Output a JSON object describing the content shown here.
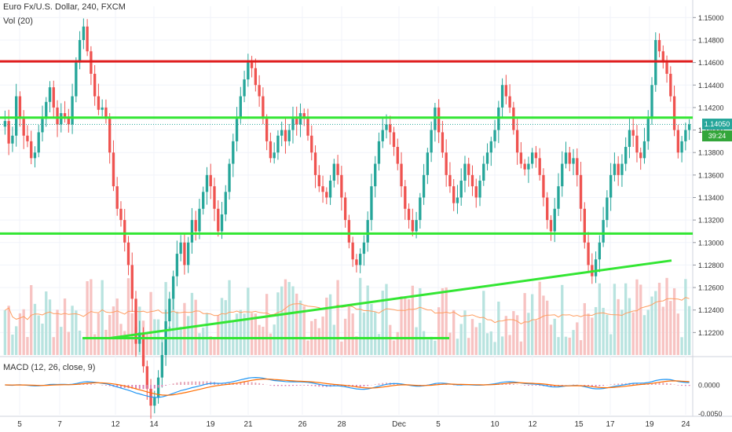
{
  "header": {
    "title": "Euro Fx/U.S. Dollar, 240, FXCM",
    "volume_label": "Vol (20)",
    "macd_label": "MACD (12, 26, close, 9)"
  },
  "price_axis": {
    "ticks": [
      "1.15000",
      "1.14800",
      "1.14600",
      "1.14400",
      "1.14200",
      "1.14000",
      "1.13800",
      "1.13600",
      "1.13400",
      "1.13200",
      "1.13000",
      "1.12800",
      "1.12600",
      "1.12400",
      "1.12200"
    ],
    "last_price": "1.14050",
    "countdown": "39:24"
  },
  "macd_axis": {
    "ticks": [
      "0.0000",
      "-0.0050"
    ]
  },
  "time_axis": {
    "labels": [
      "5",
      "7",
      "12",
      "14",
      "19",
      "21",
      "26",
      "28",
      "Dec",
      "5",
      "10",
      "12",
      "15",
      "17",
      "19",
      "24"
    ]
  },
  "colors": {
    "up": "#26a69a",
    "down": "#ef5350",
    "support_lines": "#33e633",
    "resistance": "#e01b1b",
    "macd_line": "#2196f3",
    "signal_line": "#ff6d00",
    "volume_ma": "#ff9d60",
    "price_tag": "#26a69a",
    "countdown_tag": "#33a63a"
  },
  "chart_data": {
    "type": "candlestick",
    "instrument": "Euro Fx/U.S. Dollar",
    "timeframe": "240",
    "source": "FXCM",
    "ylim": [
      1.12,
      1.151
    ],
    "grid": true,
    "closes": [
      1.1408,
      1.1388,
      1.1395,
      1.143,
      1.141,
      1.1395,
      1.139,
      1.1375,
      1.138,
      1.1398,
      1.141,
      1.1425,
      1.1438,
      1.142,
      1.1405,
      1.1415,
      1.1412,
      1.1405,
      1.143,
      1.146,
      1.148,
      1.1492,
      1.147,
      1.145,
      1.143,
      1.1418,
      1.142,
      1.141,
      1.138,
      1.135,
      1.133,
      1.132,
      1.13,
      1.128,
      1.125,
      1.121,
      1.122,
      1.119,
      1.117,
      1.1155,
      1.1162,
      1.118,
      1.12,
      1.123,
      1.125,
      1.127,
      1.129,
      1.13,
      1.128,
      1.13,
      1.132,
      1.131,
      1.133,
      1.1345,
      1.136,
      1.135,
      1.133,
      1.131,
      1.1325,
      1.1345,
      1.137,
      1.139,
      1.141,
      1.143,
      1.1445,
      1.146,
      1.1455,
      1.144,
      1.143,
      1.141,
      1.139,
      1.1375,
      1.138,
      1.1395,
      1.14,
      1.139,
      1.14,
      1.141,
      1.1405,
      1.1415,
      1.141,
      1.1395,
      1.138,
      1.136,
      1.135,
      1.1345,
      1.134,
      1.1355,
      1.137,
      1.136,
      1.134,
      1.132,
      1.13,
      1.1285,
      1.128,
      1.129,
      1.13,
      1.132,
      1.135,
      1.137,
      1.139,
      1.14,
      1.1405,
      1.1398,
      1.1385,
      1.137,
      1.135,
      1.133,
      1.132,
      1.131,
      1.132,
      1.134,
      1.136,
      1.138,
      1.14,
      1.142,
      1.1398,
      1.138,
      1.136,
      1.135,
      1.1335,
      1.134,
      1.1355,
      1.137,
      1.136,
      1.135,
      1.134,
      1.1355,
      1.137,
      1.138,
      1.139,
      1.14,
      1.142,
      1.144,
      1.143,
      1.142,
      1.14,
      1.138,
      1.137,
      1.1365,
      1.137,
      1.138,
      1.1375,
      1.136,
      1.134,
      1.132,
      1.131,
      1.133,
      1.135,
      1.137,
      1.138,
      1.137,
      1.1375,
      1.136,
      1.133,
      1.13,
      1.128,
      1.127,
      1.1285,
      1.13,
      1.132,
      1.134,
      1.136,
      1.137,
      1.136,
      1.137,
      1.1385,
      1.14,
      1.1395,
      1.138,
      1.1375,
      1.139,
      1.141,
      1.144,
      1.148,
      1.147,
      1.146,
      1.145,
      1.143,
      1.14,
      1.138,
      1.139,
      1.14,
      1.1405
    ]
  }
}
